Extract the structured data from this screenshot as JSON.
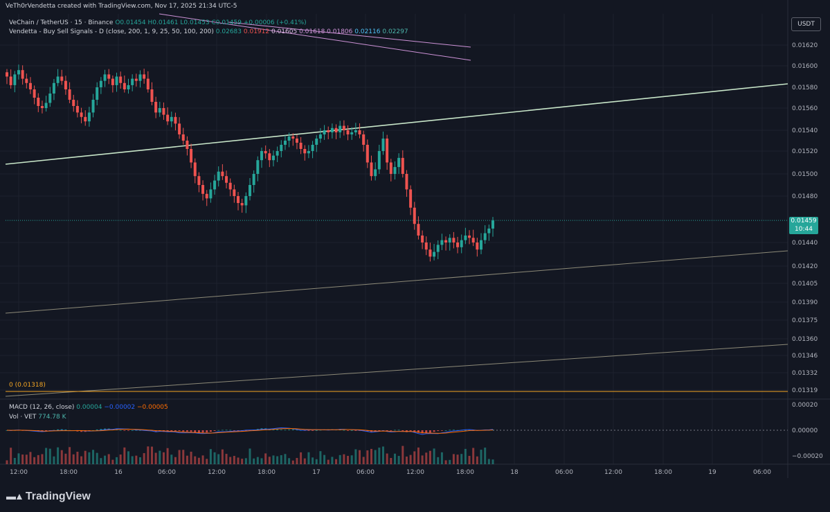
{
  "header": {
    "creator_text": "VeTh0rVendetta created with TradingView.com, Nov 17, 2025 21:34 UTC-5",
    "symbol": "VeChain / TetherUS · 15 · Binance",
    "ohlc": {
      "o": "O0.01454",
      "h": "H0.01461",
      "l": "L0.01453",
      "c": "C0.01459",
      "chg": "+0.00006 (+0.41%)"
    },
    "indicator_name": "Vendetta - Buy Sell Signals - D (close, 200, 1, 9, 25, 50, 100, 200)",
    "indicator_values": [
      "0.02683",
      "0.01912",
      "0.01605",
      "0.01618",
      "0.01806",
      "0.02116",
      "0.02297"
    ],
    "zero_label": "0 (0.01318)",
    "macd_name": "MACD (12, 26, close)",
    "macd_values": [
      "0.00004",
      "−0.00002",
      "−0.00005"
    ],
    "vol_name": "Vol · VET",
    "vol_value": "774.78 K"
  },
  "currency_button": "USDT",
  "last_price": {
    "value": "0.01459",
    "countdown": "10:44"
  },
  "brand": "TradingView",
  "colors": {
    "background": "#131722",
    "up": "#26a69a",
    "down": "#ef5350",
    "trend_upper": "#c8e6c9",
    "trend_lower": "#8d8a78",
    "fib_zero": "#f5a623",
    "macd_line": "#2962ff",
    "signal_line": "#ff6d00",
    "indicator_lines": "#ce93d8"
  },
  "chart_data": {
    "type": "candlestick",
    "title": "VeChain / TetherUS · 15 · Binance",
    "y_ticks": [
      "0.01620",
      "0.01600",
      "0.01580",
      "0.01560",
      "0.01540",
      "0.01520",
      "0.01500",
      "0.01480",
      "0.01440",
      "0.01420",
      "0.01405",
      "0.01390",
      "0.01375",
      "0.01360",
      "0.01346",
      "0.01332",
      "0.01319"
    ],
    "x_ticks": [
      "12:00",
      "18:00",
      "16",
      "06:00",
      "12:00",
      "18:00",
      "17",
      "06:00",
      "12:00",
      "18:00",
      "18",
      "06:00",
      "12:00",
      "18:00",
      "19",
      "06:00"
    ],
    "ylim": [
      0.01313,
      0.01632
    ],
    "close_path_approx": [
      0.0159,
      0.01582,
      0.01592,
      0.01596,
      0.01588,
      0.01584,
      0.01578,
      0.0157,
      0.01562,
      0.0156,
      0.01565,
      0.01574,
      0.01584,
      0.0159,
      0.01586,
      0.01578,
      0.01568,
      0.01562,
      0.01556,
      0.01552,
      0.01548,
      0.01556,
      0.01568,
      0.0158,
      0.01586,
      0.01592,
      0.01588,
      0.01582,
      0.0159,
      0.01584,
      0.01578,
      0.01582,
      0.01588,
      0.01586,
      0.01592,
      0.01588,
      0.01578,
      0.01566,
      0.01556,
      0.0156,
      0.01554,
      0.01548,
      0.01552,
      0.01546,
      0.01536,
      0.0153,
      0.01522,
      0.0151,
      0.01498,
      0.0149,
      0.01482,
      0.01478,
      0.01486,
      0.01494,
      0.01502,
      0.01498,
      0.01492,
      0.01486,
      0.0148,
      0.01474,
      0.01472,
      0.0148,
      0.0149,
      0.015,
      0.01512,
      0.0152,
      0.01518,
      0.01512,
      0.01516,
      0.0152,
      0.01526,
      0.0153,
      0.01534,
      0.01532,
      0.01528,
      0.01522,
      0.01518,
      0.0152,
      0.01526,
      0.01532,
      0.01536,
      0.0154,
      0.01538,
      0.01542,
      0.01538,
      0.01544,
      0.0154,
      0.01536,
      0.01538,
      0.0154,
      0.01536,
      0.01526,
      0.0151,
      0.01498,
      0.01504,
      0.0152,
      0.01532,
      0.0151,
      0.015,
      0.01506,
      0.01514,
      0.015,
      0.01486,
      0.0147,
      0.01456,
      0.01446,
      0.0144,
      0.01434,
      0.01428,
      0.01432,
      0.01438,
      0.01442,
      0.0144,
      0.01444,
      0.0144,
      0.01436,
      0.01442,
      0.01446,
      0.01444,
      0.0144,
      0.01434,
      0.01442,
      0.01448,
      0.01452,
      0.01459
    ],
    "macd_ylim": [
      -0.00025,
      0.00025
    ],
    "macd_ticks": [
      "0.00020",
      "0.00000",
      "−0.00020"
    ],
    "grid": true,
    "legend": "top-left"
  }
}
